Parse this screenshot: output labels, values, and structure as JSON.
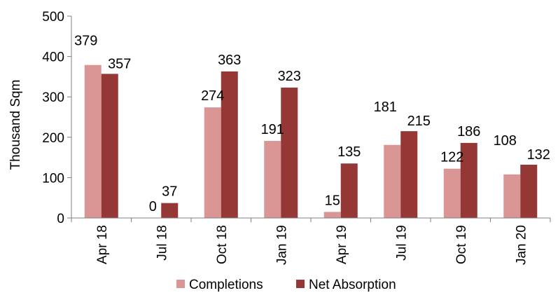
{
  "chart_data": {
    "type": "bar",
    "categories": [
      "Apr 18",
      "Jul 18",
      "Oct 18",
      "Jan 19",
      "Apr 19",
      "Jul 19",
      "Oct 19",
      "Jan 20"
    ],
    "series": [
      {
        "name": "Completions",
        "values": [
          379,
          0,
          274,
          191,
          15,
          181,
          122,
          108
        ],
        "color": "#d99694"
      },
      {
        "name": "Net Absorption",
        "values": [
          357,
          37,
          363,
          323,
          135,
          215,
          186,
          132
        ],
        "color": "#953735"
      }
    ],
    "ylabel": "Thousand Sqm",
    "ylim": [
      0,
      500
    ],
    "yticks": [
      0,
      100,
      200,
      300,
      400,
      500
    ],
    "grid": false,
    "legend": "bottom"
  }
}
